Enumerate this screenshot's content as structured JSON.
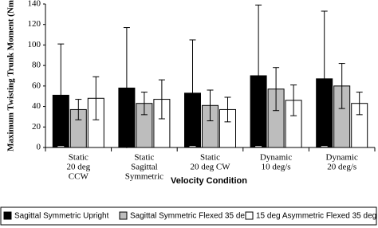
{
  "chart_data": {
    "type": "bar",
    "y_label": "Maximum Twisting Trunk Moment (Nm",
    "x_label": "Velocity Condition",
    "categories": [
      [
        "Static",
        "20 deg",
        "CCW"
      ],
      [
        "Static",
        "Sagittal",
        "Symmetric"
      ],
      [
        "Static",
        "20 deg CW"
      ],
      [
        "Dynamic",
        "10 deg/s"
      ],
      [
        "Dynamic",
        "20 deg/s"
      ]
    ],
    "series": [
      {
        "name": "Sagittal Symmetric Upright",
        "color": "#000000",
        "values": [
          51,
          58,
          53,
          70,
          67
        ],
        "errors": [
          50,
          59,
          52,
          69,
          66
        ]
      },
      {
        "name": "Sagittal Symmetric Flexed 35 deg",
        "color": "#bdbdbd",
        "values": [
          37,
          43,
          41,
          57,
          60
        ],
        "errors": [
          10,
          11,
          15,
          21,
          22
        ]
      },
      {
        "name": "15 deg Asymmetric Flexed 35 deg",
        "color": "#ffffff",
        "values": [
          48,
          47,
          37,
          46,
          43
        ],
        "errors": [
          21,
          19,
          12,
          15,
          11
        ]
      }
    ],
    "ylim": [
      0,
      140
    ],
    "yticks": [
      0,
      20,
      40,
      60,
      80,
      100,
      120,
      140
    ],
    "legend": "bottom"
  }
}
